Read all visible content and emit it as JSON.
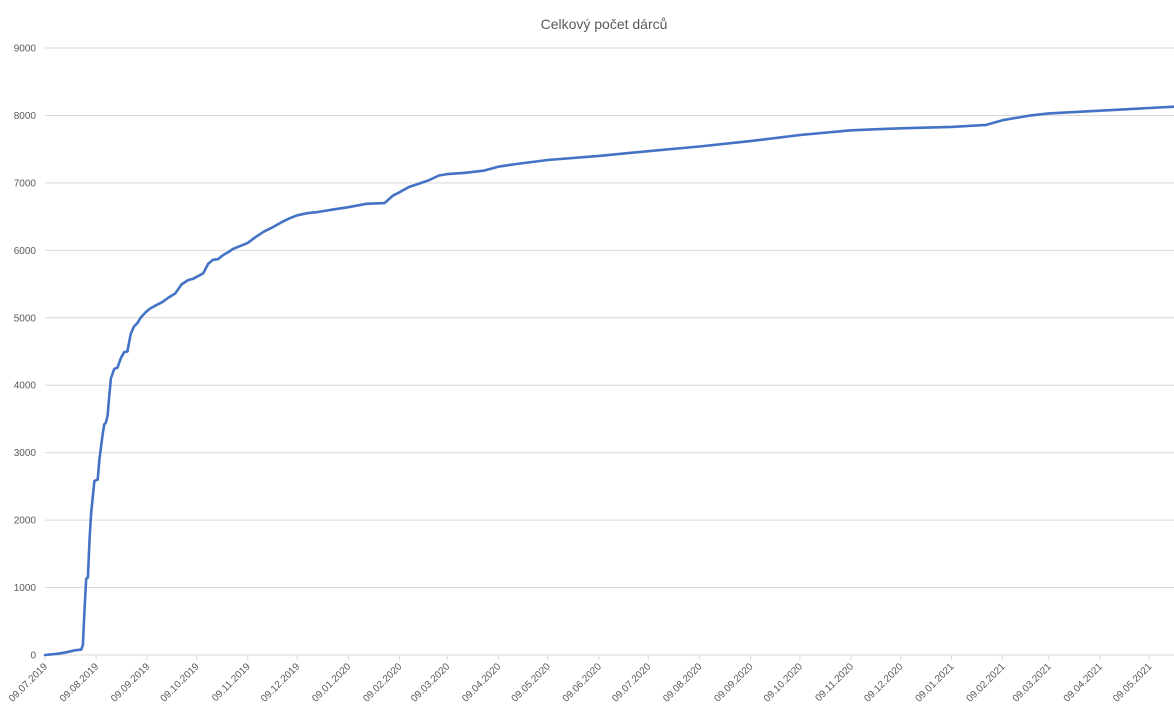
{
  "chart_data": {
    "type": "line",
    "title": "Celkový počet dárců",
    "xlabel": "",
    "ylabel": "",
    "ylim": [
      0,
      9000
    ],
    "xlim": [
      "09.07.2019",
      "24.05.2021"
    ],
    "y_ticks": [
      0,
      1000,
      2000,
      3000,
      4000,
      5000,
      6000,
      7000,
      8000,
      9000
    ],
    "x_ticks": [
      "09.07.2019",
      "09.08.2019",
      "09.09.2019",
      "09.10.2019",
      "09.11.2019",
      "09.12.2019",
      "09.01.2020",
      "09.02.2020",
      "09.03.2020",
      "09.04.2020",
      "09.05.2020",
      "09.06.2020",
      "09.07.2020",
      "09.08.2020",
      "09.09.2020",
      "09.10.2020",
      "09.11.2020",
      "09.12.2020",
      "09.01.2021",
      "09.02.2021",
      "09.03.2021",
      "09.04.2021",
      "09.05.2021"
    ],
    "grid": true,
    "legend": "none",
    "series_color": "#4472C4",
    "series": [
      {
        "x": [
          "09.07.2019",
          "17.07.2019",
          "22.07.2019",
          "27.07.2019",
          "31.07.2019",
          "01.08.2019",
          "02.08.2019",
          "03.08.2019",
          "04.08.2019",
          "05.08.2019",
          "06.08.2019",
          "08.08.2019",
          "10.08.2019",
          "11.08.2019",
          "13.08.2019",
          "14.08.2019",
          "15.08.2019",
          "16.08.2019",
          "17.08.2019",
          "18.08.2019",
          "20.08.2019",
          "22.08.2019",
          "24.08.2019",
          "26.08.2019",
          "28.08.2019",
          "30.08.2019",
          "01.09.2019",
          "03.09.2019",
          "05.09.2019",
          "08.09.2019",
          "11.09.2019",
          "14.09.2019",
          "18.09.2019",
          "22.09.2019",
          "26.09.2019",
          "30.09.2019",
          "04.10.2019",
          "07.10.2019",
          "10.10.2019",
          "13.10.2019",
          "16.10.2019",
          "19.10.2019",
          "22.10.2019",
          "25.10.2019",
          "28.10.2019",
          "31.10.2019",
          "04.11.2019",
          "09.11.2019",
          "14.11.2019",
          "19.11.2019",
          "24.11.2019",
          "29.11.2019",
          "04.12.2019",
          "09.12.2019",
          "15.12.2019",
          "22.12.2019",
          "01.01.2020",
          "09.01.2020",
          "20.01.2020",
          "31.01.2020",
          "05.02.2020",
          "09.02.2020",
          "15.02.2020",
          "21.02.2020",
          "27.02.2020",
          "04.03.2020",
          "09.03.2020",
          "20.03.2020",
          "31.03.2020",
          "09.04.2020",
          "20.04.2020",
          "09.05.2020",
          "09.06.2020",
          "09.07.2020",
          "09.08.2020",
          "09.09.2020",
          "09.10.2020",
          "09.11.2020",
          "09.12.2020",
          "09.01.2021",
          "30.01.2021",
          "09.02.2021",
          "26.02.2021",
          "09.03.2021",
          "09.04.2021",
          "09.05.2021",
          "24.05.2021"
        ],
        "values": [
          0,
          20,
          40,
          70,
          80,
          150,
          700,
          1130,
          1150,
          1700,
          2100,
          2580,
          2600,
          2900,
          3280,
          3420,
          3450,
          3550,
          3850,
          4100,
          4240,
          4260,
          4400,
          4490,
          4500,
          4760,
          4870,
          4920,
          5000,
          5080,
          5140,
          5180,
          5230,
          5300,
          5360,
          5500,
          5560,
          5580,
          5620,
          5660,
          5800,
          5860,
          5870,
          5930,
          5970,
          6020,
          6060,
          6110,
          6200,
          6280,
          6340,
          6410,
          6470,
          6520,
          6550,
          6570,
          6610,
          6640,
          6690,
          6700,
          6810,
          6860,
          6940,
          6990,
          7040,
          7110,
          7130,
          7150,
          7180,
          7240,
          7280,
          7340,
          7400,
          7470,
          7540,
          7620,
          7710,
          7780,
          7810,
          7830,
          7860,
          7930,
          8000,
          8030,
          8070,
          8110,
          8130
        ]
      }
    ]
  }
}
